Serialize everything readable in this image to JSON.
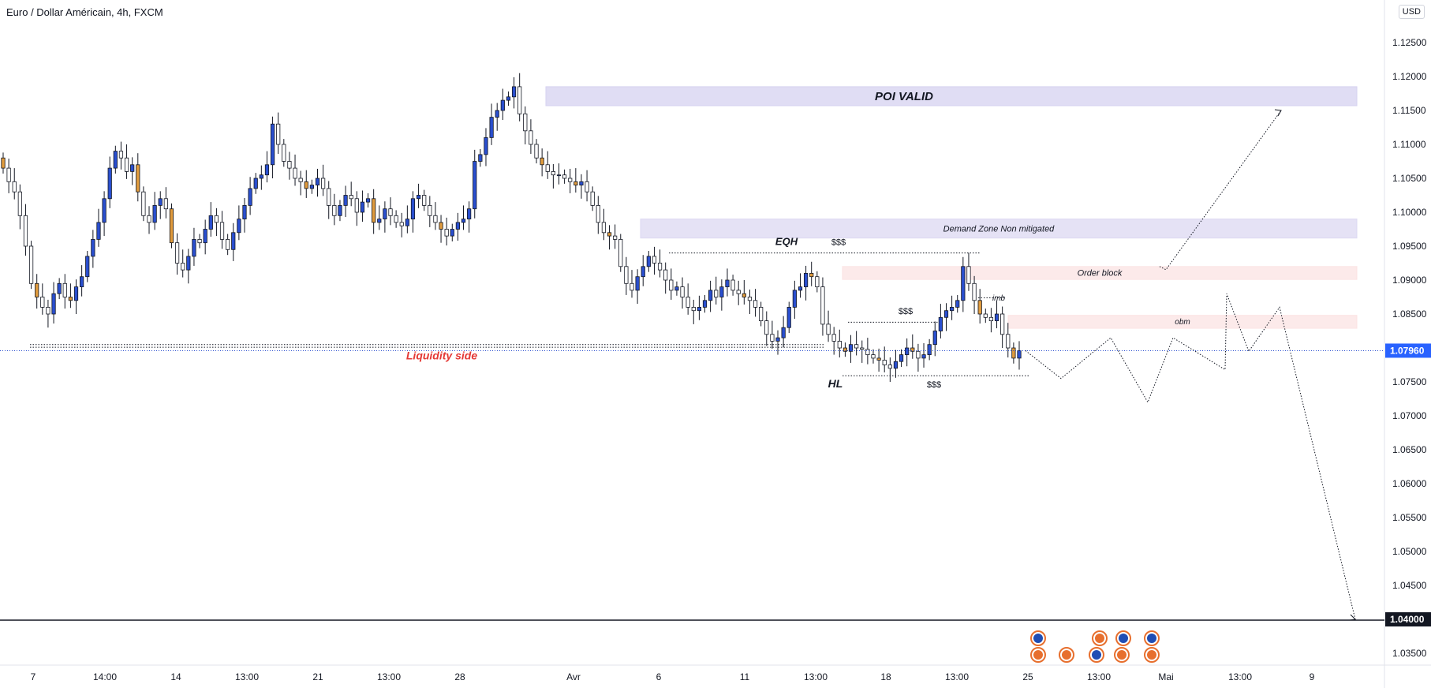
{
  "header": {
    "title": "Euro / Dollar Américain, 4h, FXCM"
  },
  "price_axis": {
    "currency_button": "USD",
    "last_price_label": "1.07960",
    "target_label": "1.04000",
    "last_price_color": "#2962ff"
  },
  "colors": {
    "bull_candle": "#2a4fcf",
    "bear_candle": "#ffffff",
    "bear_highlight": "#e09b3d",
    "poi_zone": "#d6d2f0",
    "demand_zone": "#dcd8f2",
    "ob_zone": "#fbe3e3",
    "liquidity_text": "#e53935"
  },
  "chart_data": {
    "type": "candlestick",
    "title": "Euro / Dollar Américain, 4h, FXCM",
    "symbol": "EURUSD",
    "timeframe": "4h",
    "ylim": [
      1.033,
      1.131
    ],
    "y_ticks": [
      "1.03500",
      "1.04000",
      "1.04500",
      "1.05000",
      "1.05500",
      "1.06000",
      "1.06500",
      "1.07000",
      "1.07500",
      "1.08000",
      "1.08500",
      "1.09000",
      "1.09500",
      "1.10000",
      "1.10500",
      "1.11000",
      "1.11500",
      "1.12000",
      "1.12500"
    ],
    "x_ticks": [
      "7",
      "14:00",
      "14",
      "13:00",
      "21",
      "13:00",
      "28",
      "Avr",
      "6",
      "11",
      "13:00",
      "18",
      "13:00",
      "25",
      "13:00",
      "Mai",
      "13:00",
      "9"
    ],
    "close_path": [
      1.1065,
      1.1045,
      1.103,
      1.0995,
      1.095,
      1.0895,
      1.0875,
      1.086,
      1.085,
      1.088,
      1.0895,
      1.0875,
      1.087,
      1.089,
      1.0905,
      1.0935,
      1.096,
      1.0985,
      1.102,
      1.1065,
      1.109,
      1.108,
      1.106,
      1.107,
      1.103,
      1.0995,
      1.0985,
      1.101,
      1.102,
      1.1005,
      1.0955,
      1.0925,
      1.0915,
      1.0935,
      1.096,
      1.0955,
      1.0975,
      1.0995,
      1.0985,
      1.096,
      1.0945,
      1.097,
      1.099,
      1.101,
      1.1035,
      1.105,
      1.1055,
      1.107,
      1.113,
      1.11,
      1.1075,
      1.1065,
      1.105,
      1.1045,
      1.1035,
      1.104,
      1.105,
      1.1035,
      1.101,
      1.0995,
      1.101,
      1.1025,
      1.102,
      1.1,
      1.1015,
      1.102,
      1.0985,
      1.099,
      1.1005,
      1.0995,
      1.0985,
      1.098,
      1.099,
      1.102,
      1.1025,
      1.101,
      1.0995,
      1.0985,
      1.0975,
      1.0965,
      1.0975,
      1.0985,
      1.099,
      1.1005,
      1.1075,
      1.1085,
      1.111,
      1.114,
      1.115,
      1.1165,
      1.117,
      1.1185,
      1.1145,
      1.112,
      1.11,
      1.108,
      1.107,
      1.106,
      1.1055,
      1.1055,
      1.105,
      1.1045,
      1.104,
      1.1045,
      1.103,
      1.101,
      1.0985,
      1.097,
      1.0965,
      1.096,
      1.092,
      1.0895,
      1.0885,
      1.0905,
      1.092,
      1.0935,
      1.0925,
      1.0915,
      1.09,
      1.0885,
      1.089,
      1.0875,
      1.086,
      1.0855,
      1.086,
      1.087,
      1.0885,
      1.0875,
      1.089,
      1.09,
      1.0885,
      1.088,
      1.0875,
      1.087,
      1.086,
      1.084,
      1.082,
      1.081,
      1.0815,
      1.083,
      1.086,
      1.0885,
      1.089,
      1.091,
      1.0905,
      1.089,
      1.0835,
      1.082,
      1.081,
      1.08,
      1.0795,
      1.0805,
      1.08,
      1.0798,
      1.079,
      1.0785,
      1.0782,
      1.0775,
      1.077,
      1.078,
      1.079,
      1.08,
      1.0795,
      1.0785,
      1.079,
      1.0805,
      1.0825,
      1.0845,
      1.0855,
      1.086,
      1.087,
      1.092,
      1.0895,
      1.087,
      1.085,
      1.0845,
      1.084,
      1.085,
      1.082,
      1.08,
      1.0785,
      1.0796
    ],
    "annotations": [
      {
        "label": "POI VALID",
        "type": "zone",
        "price_top": 1.1185,
        "price_bottom": 1.1157
      },
      {
        "label": "Demand Zone Non mitigated",
        "type": "zone",
        "price_top": 1.099,
        "price_bottom": 1.0962
      },
      {
        "label": "Order block",
        "type": "zone",
        "price_top": 1.092,
        "price_bottom": 1.0901
      },
      {
        "label": "obm",
        "type": "zone",
        "price_top": 1.0848,
        "price_bottom": 1.0829
      },
      {
        "label": "imb",
        "type": "text"
      },
      {
        "label": "EQH",
        "type": "text"
      },
      {
        "label": "$$$",
        "type": "text"
      },
      {
        "label": "$$$",
        "type": "text"
      },
      {
        "label": "$$$",
        "type": "text"
      },
      {
        "label": "HL",
        "type": "text"
      },
      {
        "label": "Liquidity side",
        "type": "text"
      }
    ],
    "projection_path": [
      1.0796,
      1.0755,
      1.0815,
      1.072,
      1.0815,
      1.0768,
      1.088,
      1.0795,
      1.086,
      1.04
    ],
    "projection_alt_up": [
      1.092,
      1.115
    ]
  }
}
